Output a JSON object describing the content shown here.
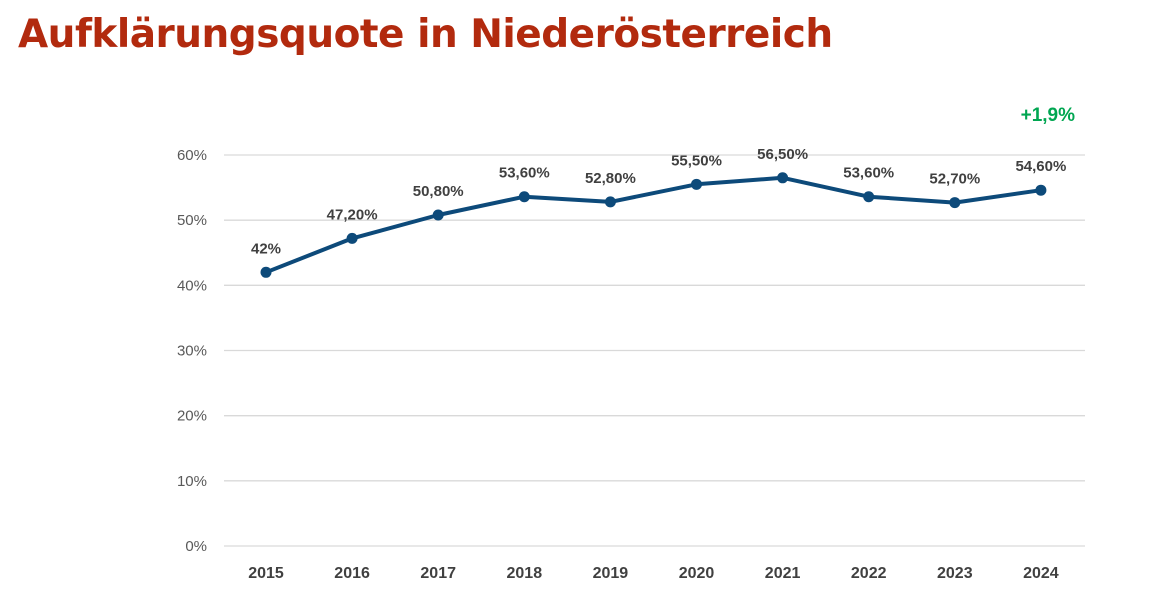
{
  "title": "Aufklärungsquote in Niederösterreich",
  "annotation": {
    "text": "+1,9%",
    "color": "#00a651"
  },
  "colors": {
    "title": "#b22a0e",
    "series": "#0d4a7a",
    "grid": "#d9d9d9"
  },
  "chart_data": {
    "type": "line",
    "title": "Aufklärungsquote in Niederösterreich",
    "xlabel": "",
    "ylabel": "",
    "x": [
      "2015",
      "2016",
      "2017",
      "2018",
      "2019",
      "2020",
      "2021",
      "2022",
      "2023",
      "2024"
    ],
    "series": [
      {
        "values": [
          42.0,
          47.2,
          50.8,
          53.6,
          52.8,
          55.5,
          56.5,
          53.6,
          52.7,
          54.6
        ],
        "labels": [
          "42%",
          "47,20%",
          "50,80%",
          "53,60%",
          "52,80%",
          "55,50%",
          "56,50%",
          "53,60%",
          "52,70%",
          "54,60%"
        ]
      }
    ],
    "ylim": [
      0,
      60
    ],
    "yticks": [
      0,
      10,
      20,
      30,
      40,
      50,
      60
    ],
    "ytick_labels": [
      "0%",
      "10%",
      "20%",
      "30%",
      "40%",
      "50%",
      "60%"
    ],
    "grid": true,
    "legend": "none",
    "markers": true
  }
}
